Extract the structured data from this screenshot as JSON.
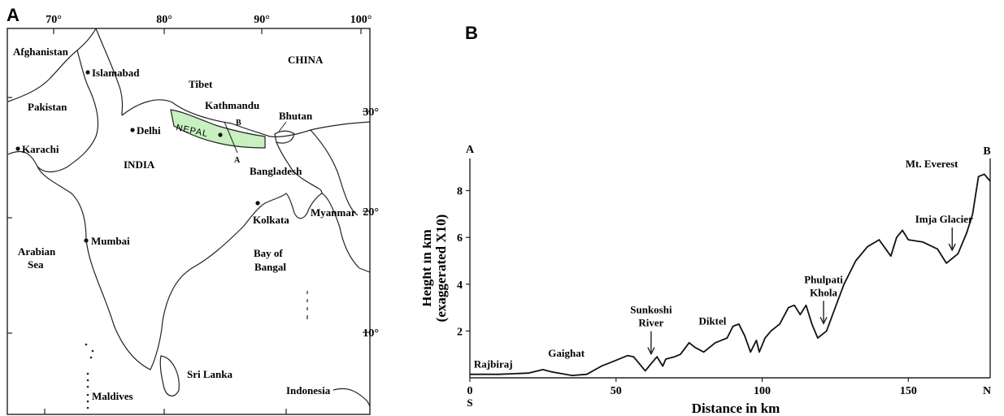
{
  "panel_a": {
    "letter": "A",
    "longitudes": [
      "70°",
      "80°",
      "90°",
      "100°"
    ],
    "latitudes": [
      "30°",
      "20°",
      "10°"
    ],
    "places": {
      "afghanistan": "Afghanistan",
      "islamabad": "Islamabad",
      "pakistan": "Pakistan",
      "karachi": "Karachi",
      "delhi": "Delhi",
      "india": "INDIA",
      "tibet": "Tibet",
      "china": "CHINA",
      "kathmandu": "Kathmandu",
      "nepal": "NEPAL",
      "bhutan": "Bhutan",
      "bangladesh": "Bangladesh",
      "myanmar": "Myanmar",
      "kolkata": "Kolkata",
      "mumbai": "Mumbai",
      "arabian_sea_1": "Arabian",
      "arabian_sea_2": "Sea",
      "bay_1": "Bay of",
      "bay_2": "Bangal",
      "sri_lanka": "Sri Lanka",
      "maldives": "Maldives",
      "indonesia": "Indonesia",
      "section_a": "A",
      "section_b": "B"
    },
    "colors": {
      "nepal_fill": "#c8f0c0",
      "line": "#222222"
    }
  },
  "panel_b": {
    "letter": "B",
    "chart_data": {
      "type": "area",
      "xlabel": "Distance in km",
      "ylabel_line1": "Height in km",
      "ylabel_line2": "(exaggerated X10)",
      "xlim": [
        0,
        178
      ],
      "ylim": [
        0,
        9.2
      ],
      "xticks": [
        0,
        50,
        100,
        150
      ],
      "yticks": [
        2,
        4,
        6,
        8
      ],
      "end_labels": {
        "top_left": "A",
        "top_right": "B",
        "bottom_left": "S",
        "bottom_right": "N"
      },
      "profile": [
        [
          0,
          0.15
        ],
        [
          10,
          0.15
        ],
        [
          20,
          0.2
        ],
        [
          25,
          0.35
        ],
        [
          28,
          0.25
        ],
        [
          35,
          0.1
        ],
        [
          40,
          0.15
        ],
        [
          45,
          0.5
        ],
        [
          50,
          0.75
        ],
        [
          54,
          0.95
        ],
        [
          56,
          0.9
        ],
        [
          58,
          0.6
        ],
        [
          60,
          0.3
        ],
        [
          62,
          0.6
        ],
        [
          64,
          0.9
        ],
        [
          66,
          0.5
        ],
        [
          67,
          0.8
        ],
        [
          70,
          0.9
        ],
        [
          72,
          1.0
        ],
        [
          75,
          1.5
        ],
        [
          77,
          1.3
        ],
        [
          80,
          1.1
        ],
        [
          84,
          1.5
        ],
        [
          86,
          1.6
        ],
        [
          88,
          1.7
        ],
        [
          90,
          2.2
        ],
        [
          92,
          2.3
        ],
        [
          94,
          1.8
        ],
        [
          96,
          1.1
        ],
        [
          98,
          1.6
        ],
        [
          99,
          1.1
        ],
        [
          101,
          1.7
        ],
        [
          103,
          2.0
        ],
        [
          106,
          2.3
        ],
        [
          109,
          3.0
        ],
        [
          111,
          3.1
        ],
        [
          113,
          2.7
        ],
        [
          115,
          3.1
        ],
        [
          117,
          2.3
        ],
        [
          119,
          1.7
        ],
        [
          122,
          2.0
        ],
        [
          125,
          3.0
        ],
        [
          128,
          4.0
        ],
        [
          132,
          5.0
        ],
        [
          136,
          5.6
        ],
        [
          140,
          5.9
        ],
        [
          144,
          5.2
        ],
        [
          146,
          6.0
        ],
        [
          148,
          6.3
        ],
        [
          150,
          5.9
        ],
        [
          155,
          5.8
        ],
        [
          160,
          5.5
        ],
        [
          163,
          4.9
        ],
        [
          167,
          5.3
        ],
        [
          170,
          6.2
        ],
        [
          172,
          7.0
        ],
        [
          174,
          8.6
        ],
        [
          176,
          8.7
        ],
        [
          178,
          8.4
        ]
      ],
      "annotations": [
        {
          "text": "Rajbiraj",
          "x": 8
        },
        {
          "text": "Gaighat",
          "x": 33
        },
        {
          "text": "Sunkoshi",
          "x": 62
        },
        {
          "text": "River",
          "x": 62
        },
        {
          "text": "Diktel",
          "x": 83
        },
        {
          "text": "Phulpati",
          "x": 121
        },
        {
          "text": "Khola",
          "x": 121
        },
        {
          "text": "Imja Glacier",
          "x": 165
        },
        {
          "text": "Mt. Everest",
          "x": 158
        }
      ]
    }
  }
}
